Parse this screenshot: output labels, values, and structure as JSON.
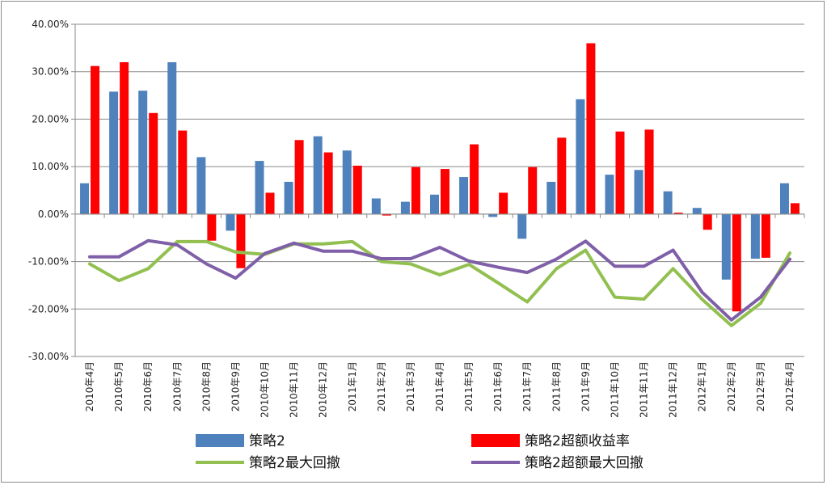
{
  "chart_data": {
    "type": "bar",
    "title": "",
    "xlabel": "",
    "ylabel": "",
    "ylim": [
      -30,
      40
    ],
    "yticks": [
      "-30.00%",
      "-20.00%",
      "-10.00%",
      "0.00%",
      "10.00%",
      "20.00%",
      "30.00%",
      "40.00%"
    ],
    "grid": true,
    "legend_position": "bottom",
    "categories": [
      "2010年4月",
      "2010年5月",
      "2010年6月",
      "2010年7月",
      "2010年8月",
      "2010年9月",
      "2010年10月",
      "2010年11月",
      "2010年12月",
      "2011年1月",
      "2011年2月",
      "2011年3月",
      "2011年4月",
      "2011年5月",
      "2011年6月",
      "2011年7月",
      "2011年8月",
      "2011年9月",
      "2011年10月",
      "2011年11月",
      "2011年12月",
      "2012年1月",
      "2012年2月",
      "2012年3月",
      "2012年4月"
    ],
    "series": [
      {
        "name": "策略2",
        "kind": "bar",
        "color": "#4f81bd",
        "values": [
          6.5,
          25.8,
          26.0,
          32.0,
          12.0,
          -3.5,
          11.2,
          6.8,
          16.4,
          13.4,
          3.3,
          2.6,
          4.1,
          7.8,
          -0.6,
          -5.2,
          6.8,
          24.2,
          8.3,
          9.3,
          4.8,
          1.3,
          -13.8,
          -9.4,
          6.5
        ]
      },
      {
        "name": "策略2超额收益率",
        "kind": "bar",
        "color": "#ff0000",
        "values": [
          31.2,
          32.0,
          21.3,
          17.6,
          -5.6,
          -11.4,
          4.5,
          15.6,
          13.0,
          10.2,
          -0.3,
          9.9,
          9.5,
          14.7,
          4.5,
          9.9,
          16.1,
          36.0,
          17.4,
          17.8,
          0.3,
          -3.3,
          -20.5,
          -9.2,
          2.3
        ]
      },
      {
        "name": "策略2最大回撤",
        "kind": "line",
        "color": "#92c050",
        "values": [
          -10.5,
          -14.0,
          -11.5,
          -5.8,
          -5.8,
          -8.0,
          -8.5,
          -6.3,
          -6.3,
          -5.8,
          -10.0,
          -10.5,
          -12.8,
          -10.6,
          -14.5,
          -18.5,
          -11.5,
          -7.6,
          -17.5,
          -17.9,
          -11.5,
          -18.0,
          -23.5,
          -18.8,
          -8.2
        ]
      },
      {
        "name": "策略2超额最大回撤",
        "kind": "line",
        "color": "#7f5fa8",
        "values": [
          -9.0,
          -9.0,
          -5.6,
          -6.5,
          -10.5,
          -13.5,
          -8.3,
          -6.1,
          -7.8,
          -7.8,
          -9.4,
          -9.4,
          -7.0,
          -9.9,
          -11.2,
          -12.3,
          -9.5,
          -5.7,
          -11.0,
          -11.0,
          -7.6,
          -16.5,
          -22.3,
          -17.5,
          -9.5
        ]
      }
    ]
  }
}
